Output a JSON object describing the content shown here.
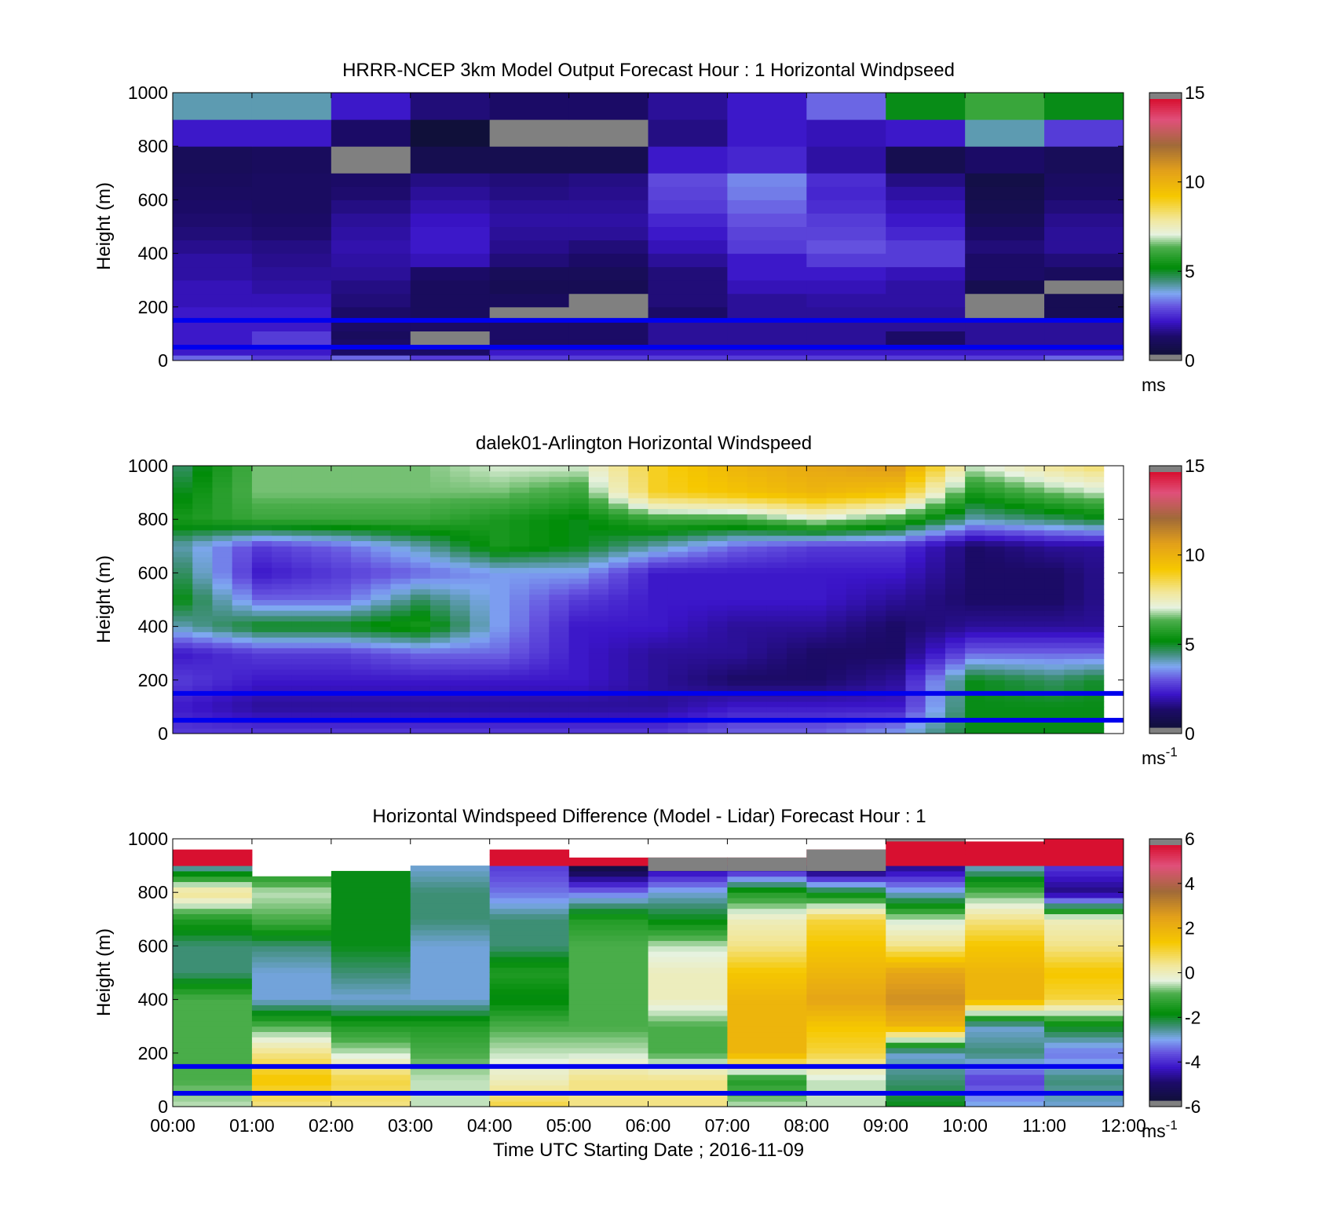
{
  "figure": {
    "xlabel": "Time UTC  Starting Date ; 2016-11-09",
    "x_ticks": [
      "00:00",
      "01:00",
      "02:00",
      "03:00",
      "04:00",
      "05:00",
      "06:00",
      "07:00",
      "08:00",
      "09:00",
      "10:00",
      "11:00",
      "12:00"
    ]
  },
  "chart_data": [
    {
      "type": "heatmap",
      "title": "HRRR-NCEP 3km Model Output   Forecast Hour : 1 Horizontal Windpseed",
      "ylabel": "Height (m)",
      "ylim": [
        0,
        1000
      ],
      "y_ticks": [
        "0",
        "200",
        "400",
        "600",
        "800",
        "1000"
      ],
      "x_range_hours": [
        0,
        12
      ],
      "colorbar": {
        "range": [
          0,
          15
        ],
        "ticks": [
          "0",
          "5",
          "10",
          "15"
        ],
        "unit_label": "ms",
        "unit_sup": ""
      },
      "reference_lines_m": [
        150,
        50
      ],
      "reference_line_color": "#0000ee",
      "x_hours": [
        0,
        1,
        2,
        3,
        4,
        5,
        6,
        7,
        8,
        9,
        10,
        11
      ],
      "y_edges": [
        0,
        20,
        40,
        60,
        80,
        110,
        150,
        200,
        250,
        300,
        350,
        400,
        450,
        500,
        550,
        600,
        650,
        700,
        800,
        900,
        1000
      ],
      "values": [
        [
          3,
          2.5,
          3,
          2.5,
          2.5,
          2.5,
          2.5,
          2.5,
          2.5,
          2.5,
          2.5,
          3
        ],
        [
          2,
          2,
          1,
          1,
          2,
          2,
          2,
          2,
          2,
          2,
          2,
          2
        ],
        [
          2,
          2,
          1,
          1,
          1.5,
          1.5,
          1.5,
          1.5,
          1.5,
          1.5,
          1.5,
          1.5
        ],
        [
          2,
          2.5,
          1,
          0,
          1,
          1,
          1.5,
          1.5,
          1.5,
          1,
          1.5,
          1.5
        ],
        [
          2,
          2.5,
          0.8,
          0,
          1,
          1,
          1.5,
          1.5,
          1.5,
          1,
          1.5,
          1.5
        ],
        [
          2,
          2,
          1,
          1,
          1,
          1,
          1.5,
          1.5,
          1.5,
          1.5,
          1.5,
          1.5
        ],
        [
          2,
          2,
          1,
          0.8,
          0,
          0,
          1,
          1.5,
          1.5,
          1.5,
          0,
          0.6
        ],
        [
          1.8,
          1.8,
          1.2,
          0.8,
          0.8,
          0,
          1.2,
          1.5,
          1.6,
          1.6,
          0,
          0.6
        ],
        [
          1.8,
          1.6,
          1.3,
          0.8,
          0.6,
          0.6,
          1.2,
          1.8,
          1.8,
          1.6,
          0.5,
          0
        ],
        [
          1.6,
          1.5,
          1.5,
          1,
          0.7,
          0.7,
          1.2,
          2,
          2,
          1.8,
          1,
          0.8
        ],
        [
          1.6,
          1.4,
          1.6,
          1.8,
          1.2,
          1,
          1.5,
          2,
          2.5,
          2.5,
          1,
          1.2
        ],
        [
          1.4,
          1.3,
          1.7,
          2,
          1.4,
          1.2,
          1.8,
          2.5,
          2.8,
          2.5,
          1.2,
          1.5
        ],
        [
          1.2,
          1.1,
          1.6,
          2,
          1.5,
          1.5,
          2,
          2.6,
          2.6,
          2.2,
          1,
          1.5
        ],
        [
          1.1,
          1,
          1.5,
          1.9,
          1.6,
          1.6,
          2.2,
          2.8,
          2.5,
          2,
          0.7,
          1.4
        ],
        [
          1,
          0.9,
          1.3,
          1.7,
          1.5,
          1.5,
          2.5,
          3,
          2.3,
          1.8,
          0.5,
          1.2
        ],
        [
          0.9,
          0.9,
          1.1,
          1.5,
          1.3,
          1.4,
          2.6,
          3.2,
          2.2,
          1.6,
          0.4,
          1
        ],
        [
          0.8,
          0.9,
          1,
          1.3,
          1.2,
          1.3,
          2.7,
          3.3,
          2.3,
          1.3,
          0.3,
          0.9
        ],
        [
          0.7,
          0.8,
          0,
          0.5,
          0.5,
          0.5,
          2,
          2.2,
          1.6,
          0.5,
          1,
          0.7
        ],
        [
          2,
          2,
          1,
          0,
          0,
          0,
          1.3,
          2,
          1.8,
          2,
          4,
          2.5
        ],
        [
          4,
          4,
          2,
          1.2,
          1,
          1,
          1.5,
          2,
          3,
          5,
          6,
          5
        ]
      ],
      "missing_cells": [
        [
          3,
          4
        ],
        [
          3,
          3
        ],
        [
          4,
          6
        ],
        [
          5,
          6
        ],
        [
          5,
          7
        ],
        [
          10,
          6
        ],
        [
          10,
          7
        ],
        [
          11,
          8
        ],
        [
          2,
          17
        ],
        [
          4,
          18
        ],
        [
          5,
          18
        ]
      ]
    },
    {
      "type": "heatmap",
      "title": "dalek01-Arlington  Horizontal Windspeed",
      "ylabel": "Height (m)",
      "ylim": [
        0,
        1000
      ],
      "y_ticks": [
        "0",
        "200",
        "400",
        "600",
        "800",
        "1000"
      ],
      "x_range_hours": [
        0,
        12
      ],
      "colorbar": {
        "range": [
          0,
          15
        ],
        "ticks": [
          "0",
          "5",
          "10",
          "15"
        ],
        "unit_label": "ms",
        "unit_sup": "-1"
      },
      "reference_lines_m": [
        150,
        50
      ],
      "reference_line_color": "#0000ee",
      "time_step_hours": 0.25,
      "profile_knots": {
        "heights_m": [
          0,
          100,
          200,
          300,
          400,
          500,
          600,
          700,
          800,
          900,
          1000
        ],
        "hours": [
          0,
          1,
          2,
          3,
          4,
          5,
          6,
          7,
          8,
          9,
          10,
          11,
          11.75
        ],
        "values": [
          [
            2.5,
            2,
            2.5,
            2,
            4,
            5,
            4.5,
            4,
            5.5,
            5,
            4.5
          ],
          [
            2.5,
            1.5,
            2,
            2.5,
            5,
            3,
            2,
            2.5,
            6,
            6.5,
            6.5
          ],
          [
            2.5,
            1.5,
            2,
            2.5,
            5,
            3,
            2.5,
            3,
            6,
            6.5,
            6.5
          ],
          [
            2.5,
            1.5,
            2,
            3,
            5.5,
            4.5,
            3,
            4,
            6,
            6.5,
            6.5
          ],
          [
            2.5,
            1.5,
            2,
            3,
            3.5,
            3.5,
            3.5,
            5.5,
            5.5,
            6.5,
            7
          ],
          [
            2.5,
            1.5,
            2,
            2,
            2,
            2.5,
            3.5,
            5,
            5,
            6,
            7
          ],
          [
            2.5,
            1.5,
            1.5,
            1.5,
            2,
            2,
            2,
            4,
            6,
            9,
            9
          ],
          [
            3,
            2,
            1,
            1.5,
            1.5,
            2,
            2,
            3,
            6,
            9.5,
            10
          ],
          [
            3,
            2,
            1,
            1,
            1.5,
            2,
            2,
            2.5,
            7,
            10,
            10.5
          ],
          [
            3.5,
            2,
            1.5,
            1,
            1,
            1.5,
            2,
            2.5,
            6,
            9.5,
            11
          ],
          [
            5,
            5,
            5,
            3,
            1.5,
            1,
            1,
            1,
            4,
            5.5,
            7
          ],
          [
            5,
            5,
            4.5,
            3,
            1.5,
            1,
            1,
            1.5,
            4.5,
            6.5,
            8
          ],
          [
            5,
            5,
            5,
            3,
            1.5,
            1.5,
            1.5,
            1.5,
            5,
            7,
            8.5
          ]
        ]
      }
    },
    {
      "type": "heatmap",
      "title": "Horizontal Windspeed Difference (Model - Lidar) Forecast Hour : 1",
      "ylabel": "Height (m)",
      "ylim": [
        0,
        1000
      ],
      "y_ticks": [
        "0",
        "200",
        "400",
        "600",
        "800",
        "1000"
      ],
      "x_range_hours": [
        0,
        12
      ],
      "colorbar": {
        "range": [
          -6,
          6
        ],
        "ticks": [
          "-6",
          "-4",
          "-2",
          "0",
          "2",
          "4",
          "6"
        ],
        "unit_label": "ms",
        "unit_sup": "-1"
      },
      "reference_lines_m": [
        150,
        50
      ],
      "reference_line_color": "#0000ee",
      "x_hours": [
        0,
        1,
        2,
        3,
        4,
        5,
        6,
        7,
        8,
        9,
        10,
        11
      ],
      "profile_knots_heights_m": [
        0,
        100,
        200,
        300,
        400,
        500,
        600,
        700,
        800,
        900,
        1000
      ],
      "values": [
        [
          -0.5,
          -1,
          -1,
          -1,
          -1,
          -2.5,
          -2.5,
          -1.5,
          0.5,
          -3
        ],
        [
          0.5,
          1.5,
          0.5,
          -1,
          -3,
          -3,
          -2.5,
          -1,
          -0.5,
          -2
        ],
        [
          0.5,
          1,
          -0.5,
          -1.5,
          -3,
          -2.5,
          -2,
          -2,
          -2,
          -2
        ],
        [
          -0.5,
          -0.5,
          -1,
          -1.5,
          -3,
          -3,
          -3,
          -2.5,
          -2.5,
          -3
        ],
        [
          1,
          0,
          -0.5,
          -1,
          -2,
          -1.5,
          -2.5,
          -2.5,
          -3.5,
          -4
        ],
        [
          0.5,
          0.5,
          -0.5,
          -1,
          -1,
          -1,
          -1,
          -1.5,
          -3.5,
          -6
        ],
        [
          0.5,
          0.5,
          -1,
          -1,
          0,
          0,
          -0.5,
          -2,
          -3,
          -5
        ],
        [
          -0.5,
          -1.5,
          2,
          2,
          2,
          1.5,
          0.5,
          0,
          -1.5,
          -5
        ],
        [
          -0.5,
          -0.5,
          1,
          1.5,
          2.5,
          2,
          1.5,
          1,
          -2,
          -6
        ],
        [
          -2,
          -2.5,
          -3,
          2,
          3,
          2.5,
          0.5,
          -0.5,
          -3,
          -5
        ],
        [
          -3,
          -4,
          -2.5,
          -3,
          2,
          2,
          1.5,
          0.5,
          -1,
          -3
        ],
        [
          -3,
          -2.5,
          -3.5,
          -2,
          1,
          1.5,
          0.5,
          0,
          -5,
          -4
        ]
      ],
      "top_of_data_m": [
        960,
        860,
        880,
        900,
        960,
        930,
        930,
        930,
        960,
        1000,
        990,
        1000
      ],
      "missing_top_m": [
        null,
        null,
        null,
        null,
        null,
        null,
        [
          880,
          930
        ],
        [
          880,
          930
        ],
        [
          880,
          960
        ],
        [
          990,
          1000
        ],
        null,
        null
      ]
    }
  ]
}
